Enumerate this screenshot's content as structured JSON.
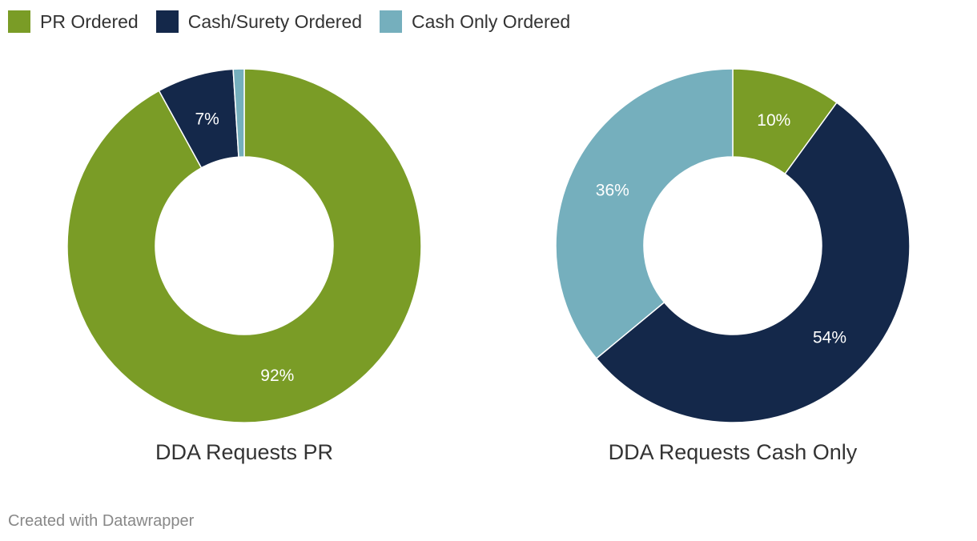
{
  "legend": {
    "items": [
      {
        "label": "PR Ordered",
        "color": "#7a9c26"
      },
      {
        "label": "Cash/Surety Ordered",
        "color": "#14284a"
      },
      {
        "label": "Cash Only Ordered",
        "color": "#75afbd"
      }
    ]
  },
  "chart_data": [
    {
      "type": "pie",
      "title": "DDA Requests PR",
      "categories": [
        "PR Ordered",
        "Cash/Surety Ordered",
        "Cash Only Ordered"
      ],
      "values": [
        92,
        7,
        1
      ],
      "labels": [
        "92%",
        "7%",
        ""
      ],
      "colors": [
        "#7a9c26",
        "#14284a",
        "#75afbd"
      ]
    },
    {
      "type": "pie",
      "title": "DDA Requests Cash Only",
      "categories": [
        "PR Ordered",
        "Cash/Surety Ordered",
        "Cash Only Ordered"
      ],
      "values": [
        10,
        54,
        36
      ],
      "labels": [
        "10%",
        "54%",
        "36%"
      ],
      "colors": [
        "#7a9c26",
        "#14284a",
        "#75afbd"
      ]
    }
  ],
  "footer": "Created with Datawrapper"
}
